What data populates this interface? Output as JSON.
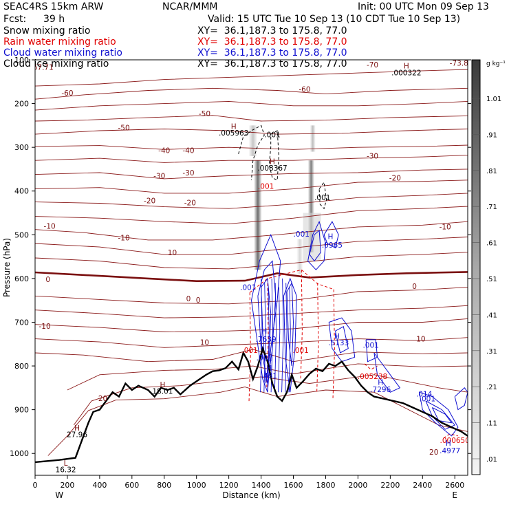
{
  "header": {
    "model": "SEAC4RS 15km ARW",
    "fcst_label": "Fcst:",
    "fcst_value": "39 h",
    "center": "NCAR/MMM",
    "init": "Init: 00 UTC Mon 09 Sep 13",
    "valid": "Valid: 15 UTC Tue 10 Sep 13 (10 CDT Tue 10 Sep 13)"
  },
  "fields": [
    {
      "name": "Snow mixing ratio",
      "xy": "XY=  36.1,187.3 to 175.8, 77.0",
      "color": "#000000"
    },
    {
      "name": "Rain water mixing ratio",
      "xy": "XY=  36.1,187.3 to 175.8, 77.0",
      "color": "#e00000"
    },
    {
      "name": "Cloud water mixing ratio",
      "xy": "XY=  36.1,187.3 to 175.8, 77.0",
      "color": "#1010d0"
    },
    {
      "name": "Cloud ice mixing ratio",
      "xy": "XY=  36.1,187.3 to 175.8, 77.0",
      "color": "#000000"
    }
  ],
  "chart_data": {
    "type": "contour cross-section",
    "xlabel": "Distance (km)",
    "ylabel": "Pressure (hPa)",
    "xlim": [
      0,
      2680
    ],
    "ylim": [
      1050,
      100
    ],
    "x_ticks": [
      "0",
      "200",
      "400",
      "600",
      "800",
      "1000",
      "1200",
      "1400",
      "1600",
      "1800",
      "2000",
      "2200",
      "2400",
      "2600"
    ],
    "y_ticks": [
      "100",
      "200",
      "300",
      "400",
      "500",
      "600",
      "700",
      "800",
      "900",
      "1000"
    ],
    "x_end_labels": {
      "left": "W",
      "right": "E"
    },
    "colorbar": {
      "unit": "g kg⁻¹",
      "levels": [
        "1.01",
        ".91",
        ".81",
        ".71",
        ".61",
        ".51",
        ".41",
        ".31",
        ".21",
        ".11",
        ".01"
      ]
    },
    "colors": {
      "temperature": "#8b1a1a",
      "zero_line": "#7a0e0e",
      "rain": "#e00000",
      "cloud_water": "#1010d0",
      "terrain": "#000000"
    },
    "temperature_labels": [
      {
        "text": "67.71",
        "x": 50,
        "p": 123
      },
      {
        "text": "-70",
        "x": 2090,
        "p": 117
      },
      {
        "text": "-73.84",
        "x": 2640,
        "p": 113
      },
      {
        "text": "-60",
        "x": 200,
        "p": 182
      },
      {
        "text": "-60",
        "x": 1670,
        "p": 173
      },
      {
        "text": "-50",
        "x": 1050,
        "p": 229
      },
      {
        "text": "-50",
        "x": 550,
        "p": 261
      },
      {
        "text": "-40",
        "x": 800,
        "p": 313
      },
      {
        "text": "-40",
        "x": 950,
        "p": 313
      },
      {
        "text": "-30",
        "x": 770,
        "p": 371
      },
      {
        "text": "-30",
        "x": 950,
        "p": 364
      },
      {
        "text": "-30",
        "x": 2090,
        "p": 326
      },
      {
        "text": "-20",
        "x": 710,
        "p": 428
      },
      {
        "text": "-20",
        "x": 960,
        "p": 433
      },
      {
        "text": "-20",
        "x": 2230,
        "p": 376
      },
      {
        "text": "-10",
        "x": 90,
        "p": 486
      },
      {
        "text": "-10",
        "x": 550,
        "p": 513
      },
      {
        "text": "-10",
        "x": 2540,
        "p": 488
      },
      {
        "text": "10",
        "x": 850,
        "p": 547
      },
      {
        "text": "0",
        "x": 80,
        "p": 608
      },
      {
        "text": "0",
        "x": 950,
        "p": 652
      },
      {
        "text": "0",
        "x": 1010,
        "p": 655
      },
      {
        "text": "0",
        "x": 2350,
        "p": 624
      },
      {
        "text": "-10",
        "x": 60,
        "p": 715
      },
      {
        "text": "10",
        "x": 1050,
        "p": 752
      },
      {
        "text": "10",
        "x": 2390,
        "p": 744
      },
      {
        "text": "20",
        "x": 420,
        "p": 880
      },
      {
        "text": "20",
        "x": 2470,
        "p": 1003
      }
    ],
    "high_low_labels": [
      {
        "mark": "H",
        "value": ".000322",
        "x": 2300,
        "p": 135
      },
      {
        "mark": "H",
        "value": ".005963",
        "x": 1230,
        "p": 273
      },
      {
        "mark": "H",
        "value": ".008367",
        "x": 1470,
        "p": 353
      },
      {
        "mark": "H",
        "value": "18.01",
        "x": 790,
        "p": 864
      },
      {
        "mark": "H",
        "value": "27.96",
        "x": 260,
        "p": 963
      },
      {
        "mark": "L",
        "value": "16.32",
        "x": 190,
        "p": 1043
      }
    ],
    "rain_labels": [
      {
        "text": ".001",
        "x": 1430,
        "p": 395
      },
      {
        "text": ".001",
        "x": 1330,
        "p": 770
      },
      {
        "text": ".001",
        "x": 1645,
        "p": 770
      },
      {
        "text": ".005238",
        "x": 2090,
        "p": 830
      },
      {
        "text": ".000650",
        "x": 2600,
        "p": 976
      }
    ],
    "snow_ice_labels": [
      {
        "text": ".001",
        "x": 1470,
        "p": 277
      },
      {
        "text": ".001",
        "x": 1780,
        "p": 421
      }
    ],
    "cloud_water_labels": [
      {
        "text": "H",
        "x": 1830,
        "p": 510
      },
      {
        "text": ".0965",
        "x": 1840,
        "p": 529
      },
      {
        "text": ".001",
        "x": 1650,
        "p": 504
      },
      {
        "text": ".001",
        "x": 1320,
        "p": 626
      },
      {
        "text": "H",
        "x": 1420,
        "p": 726
      },
      {
        "text": ".7639",
        "x": 1430,
        "p": 745
      },
      {
        "text": ".001",
        "x": 1420,
        "p": 787
      },
      {
        "text": "H",
        "x": 1450,
        "p": 811
      },
      {
        "text": ".481",
        "x": 1450,
        "p": 828
      },
      {
        "text": "H",
        "x": 1870,
        "p": 738
      },
      {
        "text": ".5133",
        "x": 1880,
        "p": 753
      },
      {
        "text": ".001",
        "x": 2080,
        "p": 758
      },
      {
        "text": "H",
        "x": 2140,
        "p": 843
      },
      {
        "text": ".7296",
        "x": 2140,
        "p": 860
      },
      {
        "text": ".014",
        "x": 2410,
        "p": 870
      },
      {
        "text": ".001",
        "x": 2430,
        "p": 881
      },
      {
        "text": "H",
        "x": 2560,
        "p": 982
      },
      {
        "text": ".4977",
        "x": 2570,
        "p": 1000
      }
    ]
  }
}
